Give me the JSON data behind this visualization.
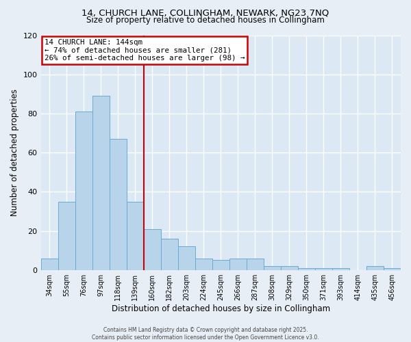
{
  "title_line1": "14, CHURCH LANE, COLLINGHAM, NEWARK, NG23 7NQ",
  "title_line2": "Size of property relative to detached houses in Collingham",
  "xlabel": "Distribution of detached houses by size in Collingham",
  "ylabel": "Number of detached properties",
  "bar_labels": [
    "34sqm",
    "55sqm",
    "76sqm",
    "97sqm",
    "118sqm",
    "139sqm",
    "160sqm",
    "182sqm",
    "203sqm",
    "224sqm",
    "245sqm",
    "266sqm",
    "287sqm",
    "308sqm",
    "329sqm",
    "350sqm",
    "371sqm",
    "393sqm",
    "414sqm",
    "435sqm",
    "456sqm"
  ],
  "bar_values": [
    6,
    35,
    81,
    89,
    67,
    35,
    21,
    16,
    12,
    6,
    5,
    6,
    6,
    2,
    2,
    1,
    1,
    1,
    0,
    2,
    1
  ],
  "bar_color": "#b8d4ea",
  "bar_edge_color": "#6aaad4",
  "background_color": "#e8eef5",
  "plot_bg_color": "#dce8f4",
  "grid_color": "#ffffff",
  "vline_x": 5.5,
  "vline_color": "#cc0000",
  "annotation_title": "14 CHURCH LANE: 144sqm",
  "annotation_line2": "← 74% of detached houses are smaller (281)",
  "annotation_line3": "26% of semi-detached houses are larger (98) →",
  "annotation_box_color": "#ffffff",
  "annotation_box_edge": "#cc0000",
  "ylim": [
    0,
    120
  ],
  "yticks": [
    0,
    20,
    40,
    60,
    80,
    100,
    120
  ],
  "footer_line1": "Contains HM Land Registry data © Crown copyright and database right 2025.",
  "footer_line2": "Contains public sector information licensed under the Open Government Licence v3.0."
}
